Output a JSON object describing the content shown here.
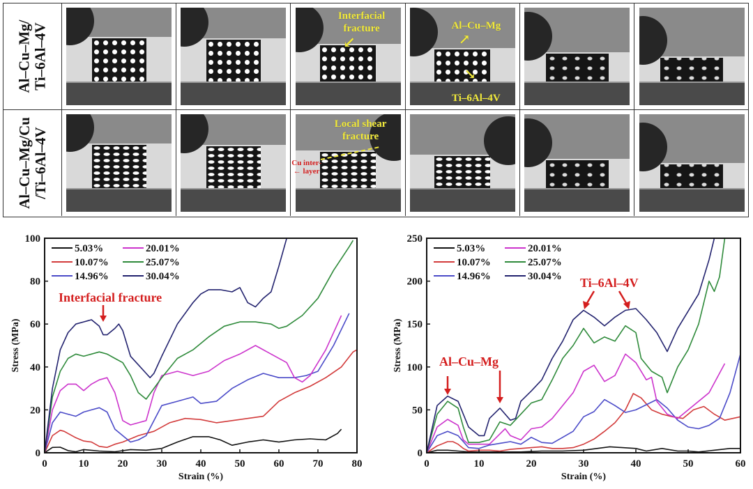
{
  "figure": {
    "rows": [
      {
        "label_line1": "Al–Cu–Mg/",
        "label_line2": "Ti–6Al–4V"
      },
      {
        "label_line1": "Al–Cu–Mg/Cu",
        "label_line2": "/Ti–6Al–4V"
      }
    ],
    "photo_annotations": {
      "row1_col3": "Interfacial fracture",
      "row1_col3_line1": "Interfacial",
      "row1_col3_line2": "fracture",
      "row1_col4_top": "Al–Cu–Mg",
      "row1_col4_bottom": "Ti–6Al–4V",
      "row2_col3_line1": "Local shear",
      "row2_col3_line2": "fracture",
      "row2_col3_side_line1": "Cu inter-",
      "row2_col3_side_line2": "layer"
    },
    "photo_columns": 6,
    "colors": {
      "annotation_yellow": "#f2ea3a",
      "annotation_red": "#d41e1e"
    }
  },
  "chart_data": [
    {
      "type": "line",
      "title": "",
      "xlabel": "Strain (%)",
      "ylabel": "Stress (MPa)",
      "xlim": [
        0,
        80
      ],
      "ylim": [
        0,
        100
      ],
      "xticks": [
        0,
        10,
        20,
        30,
        40,
        50,
        60,
        70,
        80
      ],
      "yticks": [
        0,
        20,
        40,
        60,
        80,
        100
      ],
      "grid": false,
      "legend_position": "top-left",
      "annotations": [
        {
          "text": "Interfacial fracture",
          "x": 15,
          "y": 60,
          "arrow": true,
          "color": "#d41e1e"
        }
      ],
      "series": [
        {
          "name": "5.03%",
          "color": "#111111",
          "x": [
            0,
            2,
            4,
            6,
            8,
            10,
            14,
            18,
            22,
            26,
            30,
            34,
            38,
            42,
            45,
            48,
            52,
            56,
            60,
            64,
            68,
            72,
            75,
            76
          ],
          "y": [
            0,
            2.5,
            2.6,
            1,
            0.5,
            1.5,
            0.8,
            0.5,
            1.5,
            1.2,
            2,
            5,
            7.5,
            7.5,
            6,
            3.5,
            5,
            6,
            5,
            6,
            6.5,
            6,
            9,
            11
          ]
        },
        {
          "name": "10.07%",
          "color": "#d23a3a",
          "x": [
            0,
            2,
            4,
            5,
            6,
            8,
            10,
            12,
            14,
            16,
            18,
            20,
            24,
            28,
            32,
            36,
            40,
            44,
            48,
            52,
            56,
            60,
            64,
            68,
            72,
            76,
            79,
            80
          ],
          "y": [
            0,
            8,
            10.5,
            10,
            9,
            7,
            5.5,
            5,
            3,
            2.5,
            4,
            5,
            8,
            10,
            14,
            16,
            15.5,
            14,
            15,
            16,
            17,
            24,
            28,
            31,
            35,
            40,
            47,
            48
          ]
        },
        {
          "name": "14.96%",
          "color": "#4a4ac8",
          "x": [
            0,
            2,
            4,
            6,
            8,
            10,
            12,
            14,
            16,
            18,
            20,
            22,
            24,
            26,
            28,
            30,
            34,
            38,
            40,
            44,
            48,
            52,
            56,
            60,
            64,
            67,
            70,
            74,
            78
          ],
          "y": [
            0,
            14,
            19,
            18,
            17,
            19,
            20,
            21,
            19,
            11,
            8,
            5,
            6,
            8,
            15,
            22,
            24,
            26,
            23,
            24,
            30,
            34,
            37,
            35,
            35,
            36,
            38,
            50,
            65
          ]
        },
        {
          "name": "20.01%",
          "color": "#cc33cc",
          "x": [
            0,
            2,
            4,
            6,
            8,
            10,
            12,
            14,
            16,
            18,
            20,
            22,
            24,
            26,
            28,
            30,
            34,
            38,
            42,
            46,
            50,
            54,
            58,
            62,
            64,
            66,
            68,
            72,
            76
          ],
          "y": [
            0,
            20,
            29,
            32,
            32,
            29,
            32,
            34,
            35,
            28,
            15,
            13,
            14,
            15,
            28,
            36,
            38,
            36,
            38,
            43,
            46,
            50,
            46,
            42,
            35,
            33,
            36,
            48,
            64
          ]
        },
        {
          "name": "25.07%",
          "color": "#2e8a3a",
          "x": [
            0,
            2,
            4,
            6,
            8,
            10,
            12,
            14,
            16,
            18,
            20,
            22,
            24,
            26,
            28,
            30,
            34,
            38,
            42,
            46,
            50,
            54,
            58,
            60,
            62,
            66,
            70,
            74,
            78,
            79
          ],
          "y": [
            0,
            26,
            38,
            44,
            46,
            45,
            46,
            47,
            46,
            44,
            42,
            36,
            28,
            25,
            30,
            35,
            44,
            48,
            54,
            59,
            61,
            61,
            60,
            58,
            59,
            64,
            72,
            85,
            96,
            99
          ]
        },
        {
          "name": "30.04%",
          "color": "#22226e",
          "x": [
            0,
            2,
            4,
            6,
            8,
            10,
            12,
            14,
            15,
            16,
            18,
            19,
            20,
            22,
            24,
            26,
            27,
            28,
            30,
            34,
            38,
            40,
            42,
            45,
            48,
            50,
            52,
            54,
            56,
            58,
            60,
            62
          ],
          "y": [
            0,
            30,
            48,
            56,
            60,
            61,
            62,
            59,
            55,
            55,
            58,
            60,
            57,
            45,
            41,
            37,
            35,
            37,
            45,
            60,
            70,
            74,
            76,
            76,
            75,
            77,
            70,
            68,
            72,
            75,
            87,
            100
          ]
        }
      ]
    },
    {
      "type": "line",
      "title": "",
      "xlabel": "Strain (%)",
      "ylabel": "Stress (MPa)",
      "xlim": [
        0,
        60
      ],
      "ylim": [
        0,
        250
      ],
      "xticks": [
        0,
        10,
        20,
        30,
        40,
        50,
        60
      ],
      "yticks": [
        0,
        50,
        100,
        150,
        200,
        250
      ],
      "grid": false,
      "legend_position": "top-left",
      "annotations": [
        {
          "text": "Al–Cu–Mg",
          "arrows_at_x": [
            4,
            14
          ],
          "color": "#d41e1e"
        },
        {
          "text": "Ti–6Al–4V",
          "arrows_at_x": [
            31,
            39
          ],
          "color": "#d41e1e"
        }
      ],
      "series": [
        {
          "name": "5.03%",
          "color": "#111111",
          "x": [
            0,
            2,
            4,
            6,
            8,
            10,
            14,
            18,
            22,
            26,
            30,
            35,
            40,
            42,
            45,
            48,
            50,
            52,
            55,
            58,
            60
          ],
          "y": [
            0,
            3,
            3,
            2,
            1,
            1,
            1,
            1,
            2,
            2,
            3,
            7,
            5,
            2,
            5,
            2,
            2,
            1,
            3,
            5,
            5
          ]
        },
        {
          "name": "10.07%",
          "color": "#d23a3a",
          "x": [
            0,
            2,
            4,
            5,
            6,
            7,
            8,
            10,
            12,
            14,
            16,
            18,
            20,
            22,
            24,
            26,
            28,
            30,
            32,
            34,
            36,
            38,
            39.5,
            41,
            43,
            45,
            47,
            49,
            51,
            53,
            55,
            57,
            60
          ],
          "y": [
            0,
            8,
            13,
            13,
            10,
            5,
            2,
            3,
            3,
            2,
            4,
            5,
            6,
            7,
            5,
            5,
            6,
            10,
            16,
            25,
            35,
            50,
            69,
            64,
            50,
            45,
            42,
            40,
            50,
            54,
            45,
            38,
            42
          ]
        },
        {
          "name": "14.96%",
          "color": "#4a4ac8",
          "x": [
            0,
            2,
            4,
            6,
            8,
            10,
            12,
            14,
            16,
            18,
            20,
            22,
            24,
            26,
            28,
            30,
            32,
            34,
            36,
            38,
            40,
            42,
            44,
            46,
            48,
            50,
            52,
            54,
            56,
            58,
            60
          ],
          "y": [
            0,
            20,
            25,
            20,
            6,
            5,
            9,
            11,
            13,
            10,
            18,
            12,
            11,
            18,
            25,
            42,
            48,
            62,
            55,
            47,
            50,
            56,
            62,
            52,
            38,
            30,
            28,
            32,
            40,
            70,
            115
          ]
        },
        {
          "name": "20.01%",
          "color": "#cc33cc",
          "x": [
            0,
            2,
            4,
            6,
            7,
            8,
            10,
            12,
            14,
            15,
            16,
            18,
            20,
            22,
            24,
            26,
            28,
            30,
            32,
            34,
            36,
            38,
            40,
            42,
            43,
            44,
            46,
            48,
            50,
            54,
            57
          ],
          "y": [
            0,
            30,
            39,
            32,
            15,
            10,
            10,
            10,
            22,
            28,
            20,
            15,
            28,
            30,
            40,
            55,
            70,
            95,
            102,
            83,
            90,
            115,
            105,
            85,
            88,
            60,
            45,
            40,
            50,
            70,
            104
          ]
        },
        {
          "name": "25.07%",
          "color": "#2e8a3a",
          "x": [
            0,
            2,
            4,
            6,
            7,
            8,
            10,
            12,
            14,
            16,
            18,
            20,
            22,
            24,
            26,
            28,
            30,
            32,
            34,
            36,
            38,
            40,
            41,
            43,
            45,
            46,
            48,
            50,
            52,
            54,
            55,
            56,
            57
          ],
          "y": [
            0,
            45,
            60,
            52,
            30,
            12,
            12,
            15,
            36,
            32,
            45,
            58,
            62,
            85,
            110,
            125,
            145,
            128,
            135,
            130,
            148,
            140,
            110,
            95,
            88,
            70,
            100,
            120,
            150,
            200,
            188,
            205,
            250
          ]
        },
        {
          "name": "30.04%",
          "color": "#22226e",
          "x": [
            0,
            2,
            4,
            6,
            8,
            10,
            11,
            12,
            14,
            16,
            17,
            18,
            20,
            22,
            24,
            26,
            28,
            30,
            32,
            34,
            36,
            38,
            40,
            42,
            44,
            46,
            48,
            50,
            52,
            54,
            55
          ],
          "y": [
            0,
            55,
            66,
            60,
            30,
            20,
            20,
            40,
            52,
            38,
            40,
            60,
            72,
            85,
            110,
            130,
            155,
            166,
            158,
            148,
            158,
            166,
            168,
            155,
            140,
            118,
            145,
            165,
            185,
            225,
            250
          ]
        }
      ]
    }
  ]
}
